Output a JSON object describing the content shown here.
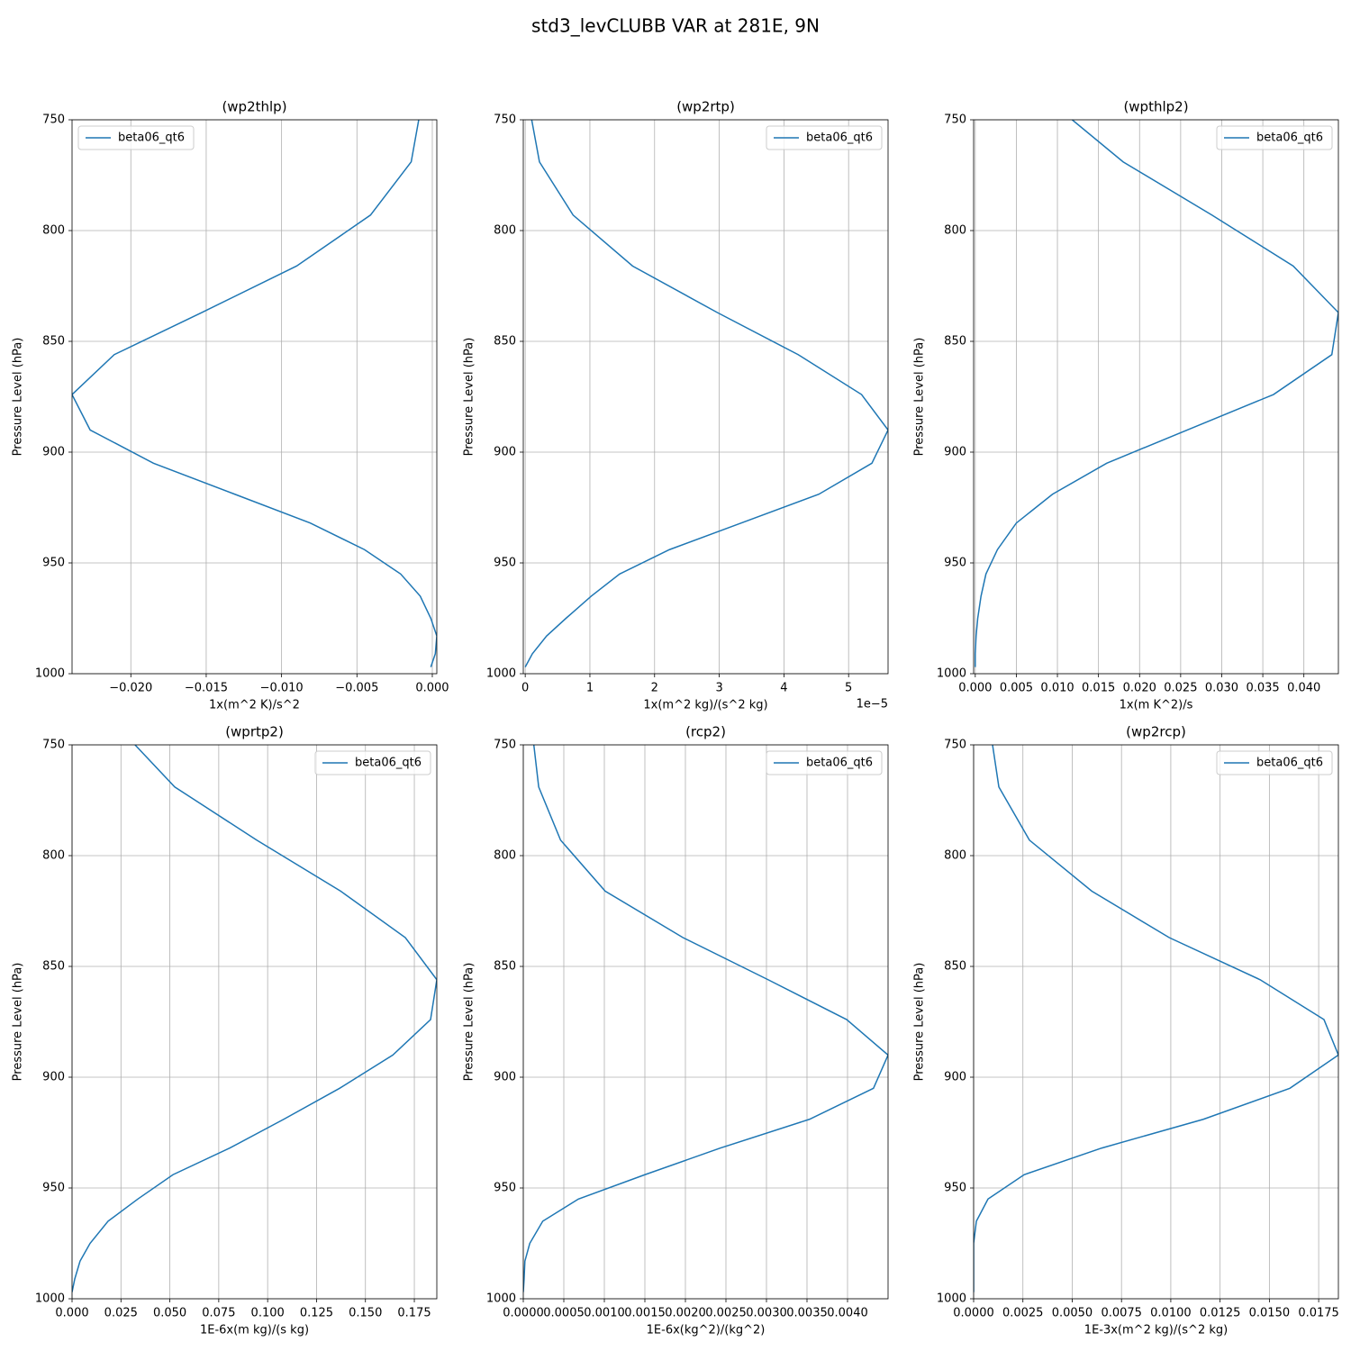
{
  "title": "std3_levCLUBB VAR at 281E, 9N",
  "chart_data": [
    {
      "type": "line",
      "title": "(wp2thlp)",
      "xlabel": "1x(m^2 K)/s^2",
      "ylabel": "Pressure Level (hPa)",
      "y": [
        750,
        769,
        793,
        816,
        837,
        856,
        874,
        890,
        905,
        919,
        932,
        944,
        955,
        965,
        975,
        983,
        991,
        997
      ],
      "series": [
        {
          "name": "beta06_qt6",
          "color": "#1f77b4",
          "values": [
            -0.0009,
            -0.0014,
            -0.0041,
            -0.009,
            -0.0153,
            -0.0211,
            -0.0239,
            -0.0227,
            -0.0185,
            -0.0131,
            -0.0081,
            -0.0045,
            -0.0021,
            -0.0008,
            -0.0001,
            0.0003,
            0.0002,
            -0.0001
          ]
        }
      ],
      "xlim": [
        -0.0239,
        0.0003
      ],
      "xticks": [
        {
          "value": -0.02,
          "label": "−0.020"
        },
        {
          "value": -0.015,
          "label": "−0.015"
        },
        {
          "value": -0.01,
          "label": "−0.010"
        },
        {
          "value": -0.005,
          "label": "−0.005"
        },
        {
          "value": 0,
          "label": "0.000"
        }
      ],
      "ylim": [
        1000,
        750
      ],
      "yticks": [
        750,
        800,
        850,
        900,
        950,
        1000
      ],
      "grid": true,
      "legend": "upper left"
    },
    {
      "type": "line",
      "title": "(wp2rtp)",
      "xlabel": "1x(m^2 kg)/(s^2 kg)",
      "ylabel": "Pressure Level (hPa)",
      "x_offset_text": "1e−5",
      "y": [
        750,
        769,
        793,
        816,
        837,
        856,
        874,
        890,
        905,
        919,
        932,
        944,
        955,
        965,
        975,
        983,
        991,
        997
      ],
      "series": [
        {
          "name": "beta06_qt6",
          "color": "#1f77b4",
          "values": [
            0.1,
            0.22,
            0.74,
            1.66,
            2.97,
            4.22,
            5.2,
            5.61,
            5.36,
            4.54,
            3.34,
            2.23,
            1.46,
            1.02,
            0.63,
            0.33,
            0.11,
            0
          ]
        }
      ],
      "xlim": [
        -0.03,
        5.61
      ],
      "xticks": [
        0,
        1,
        2,
        3,
        4,
        5
      ],
      "ylim": [
        1000,
        750
      ],
      "yticks": [
        750,
        800,
        850,
        900,
        950,
        1000
      ],
      "grid": true,
      "legend": "upper right"
    },
    {
      "type": "line",
      "title": "(wpthlp2)",
      "xlabel": "1x(m K^2)/s",
      "ylabel": "Pressure Level (hPa)",
      "y": [
        750,
        769,
        793,
        816,
        837,
        856,
        874,
        890,
        905,
        919,
        932,
        944,
        955,
        965,
        975,
        983,
        991,
        997
      ],
      "series": [
        {
          "name": "beta06_qt6",
          "color": "#1f77b4",
          "values": [
            0.0118,
            0.018,
            0.0288,
            0.0387,
            0.0442,
            0.0434,
            0.0363,
            0.0258,
            0.016,
            0.0094,
            0.005,
            0.0027,
            0.0013,
            0.0007,
            0.0003,
            0.0001,
            0,
            0
          ]
        }
      ],
      "xlim": [
        -0.0002,
        0.0442
      ],
      "xticks": [
        {
          "value": 0,
          "label": "0.000"
        },
        {
          "value": 0.005,
          "label": "0.005"
        },
        {
          "value": 0.01,
          "label": "0.010"
        },
        {
          "value": 0.015,
          "label": "0.015"
        },
        {
          "value": 0.02,
          "label": "0.020"
        },
        {
          "value": 0.025,
          "label": "0.025"
        },
        {
          "value": 0.03,
          "label": "0.030"
        },
        {
          "value": 0.035,
          "label": "0.035"
        },
        {
          "value": 0.04,
          "label": "0.040"
        }
      ],
      "ylim": [
        1000,
        750
      ],
      "yticks": [
        750,
        800,
        850,
        900,
        950,
        1000
      ],
      "grid": true,
      "legend": "upper right"
    },
    {
      "type": "line",
      "title": "(wprtp2)",
      "xlabel": "1E-6x(m kg)/(s kg)",
      "ylabel": "Pressure Level (hPa)",
      "y": [
        750,
        769,
        793,
        816,
        837,
        856,
        874,
        890,
        905,
        919,
        932,
        944,
        955,
        965,
        975,
        983,
        991,
        997
      ],
      "series": [
        {
          "name": "beta06_qt6",
          "color": "#1f77b4",
          "values": [
            0.0322,
            0.0525,
            0.0944,
            0.1373,
            0.1704,
            0.1865,
            0.1833,
            0.164,
            0.1368,
            0.1082,
            0.0806,
            0.0516,
            0.0336,
            0.0184,
            0.0092,
            0.0041,
            0.0014,
            0
          ]
        }
      ],
      "xlim": [
        0,
        0.1865
      ],
      "xticks": [
        {
          "value": 0,
          "label": "0.000"
        },
        {
          "value": 0.025,
          "label": "0.025"
        },
        {
          "value": 0.05,
          "label": "0.050"
        },
        {
          "value": 0.075,
          "label": "0.075"
        },
        {
          "value": 0.1,
          "label": "0.100"
        },
        {
          "value": 0.125,
          "label": "0.125"
        },
        {
          "value": 0.15,
          "label": "0.150"
        },
        {
          "value": 0.175,
          "label": "0.175"
        }
      ],
      "ylim": [
        1000,
        750
      ],
      "yticks": [
        750,
        800,
        850,
        900,
        950,
        1000
      ],
      "grid": true,
      "legend": "upper right"
    },
    {
      "type": "line",
      "title": "(rcp2)",
      "xlabel": "1E-6x(kg^2)/(kg^2)",
      "ylabel": "Pressure Level (hPa)",
      "y": [
        750,
        769,
        793,
        816,
        837,
        856,
        874,
        890,
        905,
        919,
        932,
        944,
        955,
        965,
        975,
        983,
        991,
        997
      ],
      "series": [
        {
          "name": "beta06_qt6",
          "color": "#1f77b4",
          "values": [
            0.00013,
            0.00019,
            0.00046,
            0.00101,
            0.00197,
            0.00302,
            0.00399,
            0.0045,
            0.00432,
            0.00353,
            0.00243,
            0.0015,
            0.00068,
            0.00024,
            8e-05,
            2e-05,
            1e-05,
            0
          ]
        }
      ],
      "xlim": [
        0,
        0.0045
      ],
      "xticks": [
        {
          "value": 0,
          "label": "0.0000"
        },
        {
          "value": 0.0005,
          "label": "0.0005"
        },
        {
          "value": 0.001,
          "label": "0.0010"
        },
        {
          "value": 0.0015,
          "label": "0.0015"
        },
        {
          "value": 0.002,
          "label": "0.0020"
        },
        {
          "value": 0.0025,
          "label": "0.0025"
        },
        {
          "value": 0.003,
          "label": "0.0030"
        },
        {
          "value": 0.0035,
          "label": "0.0035"
        },
        {
          "value": 0.004,
          "label": "0.0040"
        }
      ],
      "ylim": [
        1000,
        750
      ],
      "yticks": [
        750,
        800,
        850,
        900,
        950,
        1000
      ],
      "grid": true,
      "legend": "upper right"
    },
    {
      "type": "line",
      "title": "(wp2rcp)",
      "xlabel": "1E-3x(m^2 kg)/(s^2 kg)",
      "ylabel": "Pressure Level (hPa)",
      "y": [
        750,
        769,
        793,
        816,
        837,
        856,
        874,
        890,
        905,
        919,
        932,
        944,
        955,
        965,
        975,
        983,
        991,
        997
      ],
      "series": [
        {
          "name": "beta06_qt6",
          "color": "#1f77b4",
          "values": [
            0.00096,
            0.00128,
            0.00283,
            0.00599,
            0.00992,
            0.01453,
            0.01777,
            0.0185,
            0.01604,
            0.01165,
            0.00649,
            0.00256,
            0.00073,
            0.00014,
            0,
            0,
            0,
            0
          ]
        }
      ],
      "xlim": [
        0,
        0.0185
      ],
      "xticks": [
        {
          "value": 0,
          "label": "0.0000"
        },
        {
          "value": 0.0025,
          "label": "0.0025"
        },
        {
          "value": 0.005,
          "label": "0.0050"
        },
        {
          "value": 0.0075,
          "label": "0.0075"
        },
        {
          "value": 0.01,
          "label": "0.0100"
        },
        {
          "value": 0.0125,
          "label": "0.0125"
        },
        {
          "value": 0.015,
          "label": "0.0150"
        },
        {
          "value": 0.0175,
          "label": "0.0175"
        }
      ],
      "ylim": [
        1000,
        750
      ],
      "yticks": [
        750,
        800,
        850,
        900,
        950,
        1000
      ],
      "grid": true,
      "legend": "upper right"
    }
  ]
}
